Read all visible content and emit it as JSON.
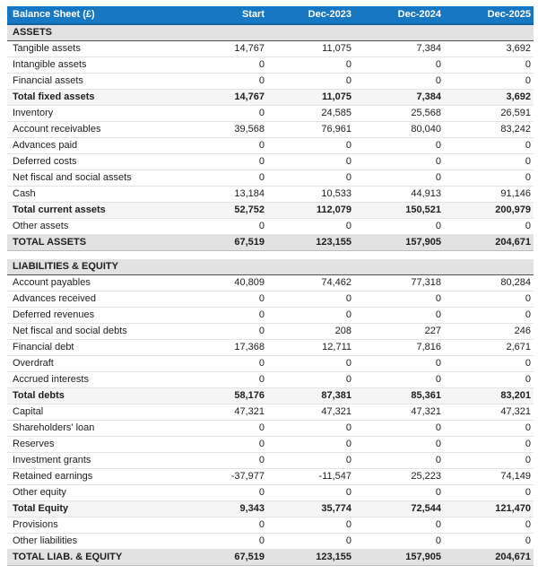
{
  "title": "Balance Sheet (£)",
  "colors": {
    "header_bg": "#1777c3",
    "header_border": "#1164a4",
    "section_row_bg": "#e2e2e2",
    "subtotal_row_bg": "#f5f5f5",
    "grand_total_row_bg": "#e2e2e2",
    "dark_rule": "#4f4f4f"
  },
  "table": {
    "columns": [
      "Balance Sheet (£)",
      "Start",
      "Dec-2023",
      "Dec-2024",
      "Dec-2025"
    ],
    "rows": [
      {
        "type": "section",
        "label": "ASSETS"
      },
      {
        "type": "item",
        "label": "Tangible assets",
        "values": [
          "14,767",
          "11,075",
          "7,384",
          "3,692"
        ]
      },
      {
        "type": "item",
        "label": "Intangible assets",
        "values": [
          "0",
          "0",
          "0",
          "0"
        ]
      },
      {
        "type": "item",
        "label": "Financial assets",
        "values": [
          "0",
          "0",
          "0",
          "0"
        ]
      },
      {
        "type": "subtotal",
        "label": "Total fixed assets",
        "values": [
          "14,767",
          "11,075",
          "7,384",
          "3,692"
        ]
      },
      {
        "type": "item",
        "label": "Inventory",
        "values": [
          "0",
          "24,585",
          "25,568",
          "26,591"
        ]
      },
      {
        "type": "item",
        "label": "Account receivables",
        "values": [
          "39,568",
          "76,961",
          "80,040",
          "83,242"
        ]
      },
      {
        "type": "item",
        "label": "Advances paid",
        "values": [
          "0",
          "0",
          "0",
          "0"
        ]
      },
      {
        "type": "item",
        "label": "Deferred costs",
        "values": [
          "0",
          "0",
          "0",
          "0"
        ]
      },
      {
        "type": "item",
        "label": "Net fiscal and social assets",
        "values": [
          "0",
          "0",
          "0",
          "0"
        ]
      },
      {
        "type": "item",
        "label": "Cash",
        "values": [
          "13,184",
          "10,533",
          "44,913",
          "91,146"
        ]
      },
      {
        "type": "subtotal",
        "label": "Total current assets",
        "values": [
          "52,752",
          "112,079",
          "150,521",
          "200,979"
        ]
      },
      {
        "type": "item",
        "label": "Other assets",
        "values": [
          "0",
          "0",
          "0",
          "0"
        ]
      },
      {
        "type": "total",
        "label": "TOTAL ASSETS",
        "values": [
          "67,519",
          "123,155",
          "157,905",
          "204,671"
        ]
      },
      {
        "type": "spacer",
        "label": ""
      },
      {
        "type": "section",
        "label": "LIABILITIES & EQUITY"
      },
      {
        "type": "item",
        "label": "Account payables",
        "values": [
          "40,809",
          "74,462",
          "77,318",
          "80,284"
        ]
      },
      {
        "type": "item",
        "label": "Advances received",
        "values": [
          "0",
          "0",
          "0",
          "0"
        ]
      },
      {
        "type": "item",
        "label": "Deferred revenues",
        "values": [
          "0",
          "0",
          "0",
          "0"
        ]
      },
      {
        "type": "item",
        "label": "Net fiscal and social debts",
        "values": [
          "0",
          "208",
          "227",
          "246"
        ]
      },
      {
        "type": "item",
        "label": "Financial debt",
        "values": [
          "17,368",
          "12,711",
          "7,816",
          "2,671"
        ]
      },
      {
        "type": "item",
        "label": "Overdraft",
        "values": [
          "0",
          "0",
          "0",
          "0"
        ]
      },
      {
        "type": "item",
        "label": "Accrued interests",
        "values": [
          "0",
          "0",
          "0",
          "0"
        ]
      },
      {
        "type": "subtotal",
        "label": "Total debts",
        "values": [
          "58,176",
          "87,381",
          "85,361",
          "83,201"
        ]
      },
      {
        "type": "item",
        "label": "Capital",
        "values": [
          "47,321",
          "47,321",
          "47,321",
          "47,321"
        ]
      },
      {
        "type": "item",
        "label": "Shareholders' loan",
        "values": [
          "0",
          "0",
          "0",
          "0"
        ]
      },
      {
        "type": "item",
        "label": "Reserves",
        "values": [
          "0",
          "0",
          "0",
          "0"
        ]
      },
      {
        "type": "item",
        "label": "Investment grants",
        "values": [
          "0",
          "0",
          "0",
          "0"
        ]
      },
      {
        "type": "item",
        "label": "Retained earnings",
        "values": [
          "-37,977",
          "-11,547",
          "25,223",
          "74,149"
        ]
      },
      {
        "type": "item",
        "label": "Other equity",
        "values": [
          "0",
          "0",
          "0",
          "0"
        ]
      },
      {
        "type": "subtotal",
        "label": "Total Equity",
        "values": [
          "9,343",
          "35,774",
          "72,544",
          "121,470"
        ]
      },
      {
        "type": "item",
        "label": "Provisions",
        "values": [
          "0",
          "0",
          "0",
          "0"
        ]
      },
      {
        "type": "item",
        "label": "Other liabilities",
        "values": [
          "0",
          "0",
          "0",
          "0"
        ]
      },
      {
        "type": "total",
        "label": "TOTAL LIAB. & EQUITY",
        "values": [
          "67,519",
          "123,155",
          "157,905",
          "204,671"
        ]
      }
    ]
  }
}
